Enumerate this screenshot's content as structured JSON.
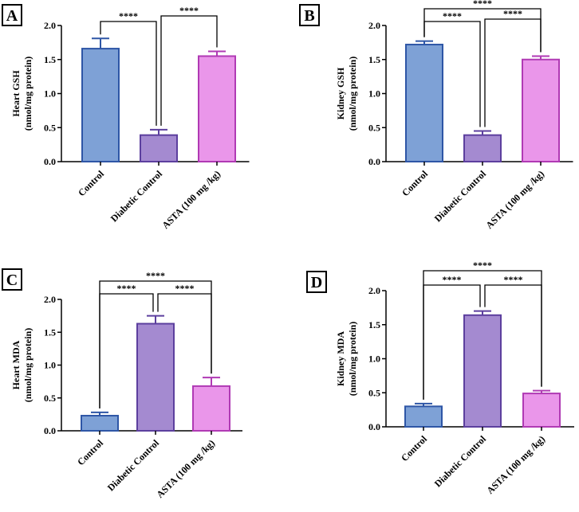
{
  "figure": {
    "panels": [
      "A",
      "B",
      "C",
      "D"
    ]
  },
  "chart_data": [
    {
      "panel": "A",
      "type": "bar",
      "title": "",
      "ylabel_line1": "Heart GSH",
      "ylabel_line2": "(nmol/mg protein)",
      "categories": [
        "Control",
        "Diabetic Control",
        "ASTA (100 mg /kg)"
      ],
      "values": [
        1.66,
        0.39,
        1.55
      ],
      "errors": [
        0.15,
        0.08,
        0.07
      ],
      "colors": [
        "#7ea1d6",
        "#a48ad0",
        "#ea96ea"
      ],
      "edge_colors": [
        "#2e56a6",
        "#5c3f9e",
        "#b03ab4"
      ],
      "ylim": [
        0,
        2.0
      ],
      "yticks": [
        "0.0",
        "0.5",
        "1.0",
        "1.5",
        "2.0"
      ],
      "significance": [
        {
          "from": 0,
          "to": 1,
          "label": "****"
        },
        {
          "from": 1,
          "to": 2,
          "label": "****"
        }
      ]
    },
    {
      "panel": "B",
      "type": "bar",
      "title": "",
      "ylabel_line1": "Kidney GSH",
      "ylabel_line2": "(nmol/mg protein)",
      "categories": [
        "Control",
        "Diabetic Control",
        "ASTA (100 mg /kg)"
      ],
      "values": [
        1.72,
        0.39,
        1.5
      ],
      "errors": [
        0.05,
        0.06,
        0.05
      ],
      "colors": [
        "#7ea1d6",
        "#a48ad0",
        "#ea96ea"
      ],
      "edge_colors": [
        "#2e56a6",
        "#5c3f9e",
        "#b03ab4"
      ],
      "ylim": [
        0,
        2.0
      ],
      "yticks": [
        "0.0",
        "0.5",
        "1.0",
        "1.5",
        "2.0"
      ],
      "significance": [
        {
          "from": 0,
          "to": 1,
          "label": "****"
        },
        {
          "from": 1,
          "to": 2,
          "label": "****"
        },
        {
          "from": 0,
          "to": 2,
          "label": "****"
        }
      ]
    },
    {
      "panel": "C",
      "type": "bar",
      "title": "",
      "ylabel_line1": "Heart MDA",
      "ylabel_line2": "(nmol/mg protein)",
      "categories": [
        "Control",
        "Diabetic Control",
        "ASTA (100 mg /kg)"
      ],
      "values": [
        0.23,
        1.63,
        0.68
      ],
      "errors": [
        0.05,
        0.12,
        0.13
      ],
      "colors": [
        "#7ea1d6",
        "#a48ad0",
        "#ea96ea"
      ],
      "edge_colors": [
        "#2e56a6",
        "#5c3f9e",
        "#b03ab4"
      ],
      "ylim": [
        0,
        2.0
      ],
      "yticks": [
        "0.0",
        "0.5",
        "1.0",
        "1.5",
        "2.0"
      ],
      "significance": [
        {
          "from": 0,
          "to": 1,
          "label": "****"
        },
        {
          "from": 1,
          "to": 2,
          "label": "****"
        },
        {
          "from": 0,
          "to": 2,
          "label": "****"
        }
      ]
    },
    {
      "panel": "D",
      "type": "bar",
      "title": "",
      "ylabel_line1": "Kidney MDA",
      "ylabel_line2": "(nmol/mg protein)",
      "categories": [
        "Control",
        "Diabetic Control",
        "ASTA (100 mg /kg)"
      ],
      "values": [
        0.3,
        1.64,
        0.49
      ],
      "errors": [
        0.04,
        0.06,
        0.04
      ],
      "colors": [
        "#7ea1d6",
        "#a48ad0",
        "#ea96ea"
      ],
      "edge_colors": [
        "#2e56a6",
        "#5c3f9e",
        "#b03ab4"
      ],
      "ylim": [
        0,
        2.0
      ],
      "yticks": [
        "0.0",
        "0.5",
        "1.0",
        "1.5",
        "2.0"
      ],
      "significance": [
        {
          "from": 0,
          "to": 1,
          "label": "****"
        },
        {
          "from": 1,
          "to": 2,
          "label": "****"
        },
        {
          "from": 0,
          "to": 2,
          "label": "****"
        }
      ]
    }
  ]
}
